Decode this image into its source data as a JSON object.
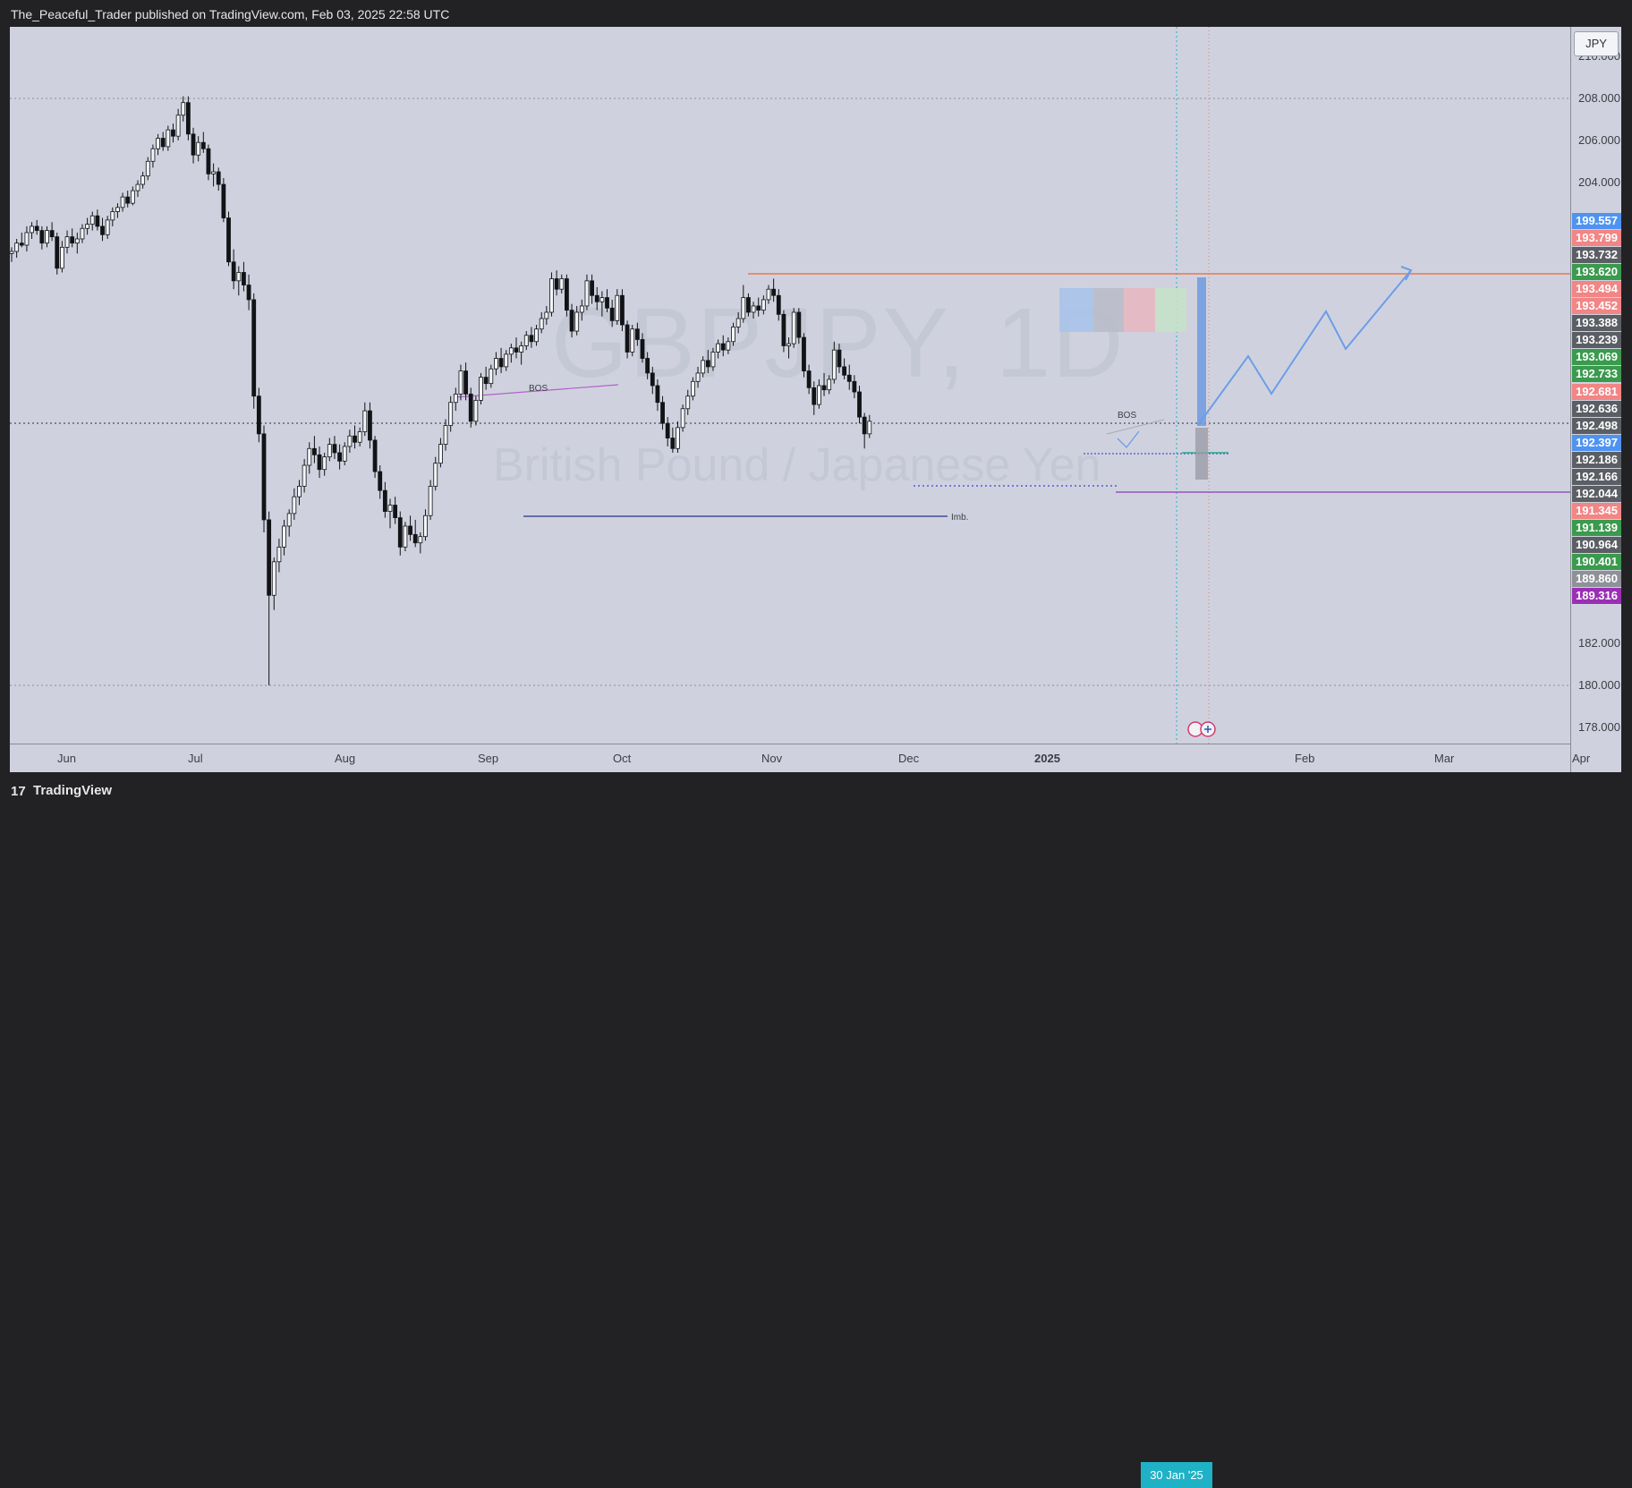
{
  "header": {
    "publisher_line": "The_Peaceful_Trader published on TradingView.com, Feb 03, 2025 22:58 UTC"
  },
  "footer": {
    "logo_icon": "tradingview-logo-icon",
    "logo_glyph": "17",
    "brand": "TradingView"
  },
  "chart": {
    "symbol_watermark": "GBPJPY, 1D",
    "description_watermark": "British Pound / Japanese Yen",
    "currency_button": "JPY",
    "selected_date": "30 Jan '25",
    "price_ticks": [
      "210.000",
      "208.000",
      "206.000",
      "204.000",
      "182.000",
      "180.000",
      "178.000"
    ],
    "time_ticks": [
      "Jun",
      "Jul",
      "Aug",
      "Sep",
      "Oct",
      "Nov",
      "Dec",
      "2025",
      "Feb",
      "Mar",
      "Apr"
    ],
    "annotations": {
      "bos_1": "BOS",
      "bos_2": "BOS",
      "imbalance": "Imb."
    },
    "price_badges": [
      {
        "value": "199.557",
        "color": "#4f93f2"
      },
      {
        "value": "193.799",
        "color": "#f28585"
      },
      {
        "value": "193.732",
        "color": "#5c5e65"
      },
      {
        "value": "193.620",
        "color": "#3a9a4d"
      },
      {
        "value": "193.494",
        "color": "#f28585"
      },
      {
        "value": "193.452",
        "color": "#f28585"
      },
      {
        "value": "193.388",
        "color": "#5c5e65"
      },
      {
        "value": "193.239",
        "color": "#5c5e65"
      },
      {
        "value": "193.069",
        "color": "#3a9a4d"
      },
      {
        "value": "192.733",
        "color": "#3a9a4d"
      },
      {
        "value": "192.681",
        "color": "#f28585"
      },
      {
        "value": "192.636",
        "color": "#5c5e65"
      },
      {
        "value": "192.498",
        "color": "#5c5e65"
      },
      {
        "value": "192.397",
        "color": "#4f93f2"
      },
      {
        "value": "192.186",
        "color": "#5c5e65"
      },
      {
        "value": "192.166",
        "color": "#5c5e65"
      },
      {
        "value": "192.044",
        "color": "#5c5e65"
      },
      {
        "value": "191.345",
        "color": "#f28585"
      },
      {
        "value": "191.139",
        "color": "#3a9a4d"
      },
      {
        "value": "190.964",
        "color": "#5c5e65"
      },
      {
        "value": "190.401",
        "color": "#3a9a4d"
      },
      {
        "value": "189.860",
        "color": "#8f9198"
      },
      {
        "value": "189.316",
        "color": "#9a2fb5"
      }
    ],
    "candles": [
      [
        200.6,
        200.9,
        200.2,
        200.7
      ],
      [
        200.7,
        201.3,
        200.4,
        201.1
      ],
      [
        201.1,
        201.6,
        200.9,
        201.0
      ],
      [
        201.0,
        201.9,
        200.7,
        201.6
      ],
      [
        201.6,
        202.1,
        201.3,
        201.9
      ],
      [
        201.9,
        202.2,
        201.5,
        201.7
      ],
      [
        201.7,
        201.9,
        200.8,
        201.1
      ],
      [
        201.1,
        201.9,
        200.9,
        201.7
      ],
      [
        201.7,
        202.1,
        201.2,
        201.4
      ],
      [
        201.4,
        201.6,
        199.6,
        199.9
      ],
      [
        199.9,
        201.2,
        199.7,
        200.9
      ],
      [
        200.9,
        201.7,
        200.6,
        201.4
      ],
      [
        201.4,
        201.8,
        200.9,
        201.1
      ],
      [
        201.1,
        201.6,
        200.6,
        201.3
      ],
      [
        201.3,
        202.0,
        201.1,
        201.8
      ],
      [
        201.8,
        202.3,
        201.5,
        202.0
      ],
      [
        202.0,
        202.6,
        201.7,
        202.4
      ],
      [
        202.4,
        202.7,
        201.7,
        201.9
      ],
      [
        201.9,
        202.3,
        201.2,
        201.5
      ],
      [
        201.5,
        202.4,
        201.3,
        202.2
      ],
      [
        202.2,
        202.8,
        201.9,
        202.6
      ],
      [
        202.6,
        203.0,
        202.3,
        202.8
      ],
      [
        202.8,
        203.5,
        202.6,
        203.3
      ],
      [
        203.3,
        203.6,
        202.8,
        203.0
      ],
      [
        203.0,
        203.8,
        202.9,
        203.6
      ],
      [
        203.6,
        204.1,
        203.3,
        203.9
      ],
      [
        203.9,
        204.5,
        203.7,
        204.3
      ],
      [
        204.3,
        205.2,
        204.1,
        205.0
      ],
      [
        205.0,
        205.8,
        204.7,
        205.6
      ],
      [
        205.6,
        206.3,
        205.3,
        206.1
      ],
      [
        206.1,
        206.4,
        205.5,
        205.7
      ],
      [
        205.7,
        206.7,
        205.5,
        206.5
      ],
      [
        206.5,
        206.8,
        205.9,
        206.2
      ],
      [
        206.2,
        207.5,
        206.0,
        207.2
      ],
      [
        207.2,
        208.1,
        206.9,
        207.8
      ],
      [
        207.8,
        208.1,
        206.0,
        206.3
      ],
      [
        206.3,
        206.6,
        204.9,
        205.3
      ],
      [
        205.3,
        206.2,
        205.0,
        205.9
      ],
      [
        205.9,
        206.4,
        205.4,
        205.6
      ],
      [
        205.6,
        205.8,
        204.1,
        204.4
      ],
      [
        204.4,
        204.9,
        203.8,
        204.5
      ],
      [
        204.5,
        204.7,
        203.6,
        203.9
      ],
      [
        203.9,
        204.2,
        202.1,
        202.3
      ],
      [
        202.3,
        202.6,
        200.0,
        200.2
      ],
      [
        200.2,
        200.8,
        198.9,
        199.3
      ],
      [
        199.3,
        200.0,
        198.6,
        199.7
      ],
      [
        199.7,
        200.2,
        198.8,
        199.1
      ],
      [
        199.1,
        199.6,
        197.9,
        198.4
      ],
      [
        198.4,
        198.7,
        193.2,
        193.8
      ],
      [
        193.8,
        194.2,
        191.6,
        192.0
      ],
      [
        192.0,
        192.4,
        187.3,
        187.9
      ],
      [
        187.9,
        188.3,
        180.0,
        184.3
      ],
      [
        184.3,
        186.1,
        183.6,
        185.9
      ],
      [
        185.9,
        187.0,
        185.4,
        186.6
      ],
      [
        186.6,
        187.9,
        186.2,
        187.6
      ],
      [
        187.6,
        188.4,
        187.1,
        188.2
      ],
      [
        188.2,
        189.4,
        187.9,
        189.0
      ],
      [
        189.0,
        189.8,
        188.6,
        189.5
      ],
      [
        189.5,
        190.8,
        189.2,
        190.5
      ],
      [
        190.5,
        191.6,
        190.1,
        191.3
      ],
      [
        191.3,
        191.9,
        190.6,
        191.0
      ],
      [
        191.0,
        191.4,
        189.9,
        190.3
      ],
      [
        190.3,
        191.1,
        190.0,
        190.9
      ],
      [
        190.9,
        191.8,
        190.7,
        191.5
      ],
      [
        191.5,
        191.9,
        190.8,
        191.1
      ],
      [
        191.1,
        191.5,
        190.3,
        190.7
      ],
      [
        190.7,
        191.6,
        190.5,
        191.4
      ],
      [
        191.4,
        192.2,
        191.1,
        191.9
      ],
      [
        191.9,
        192.4,
        191.3,
        191.6
      ],
      [
        191.6,
        192.3,
        191.4,
        192.1
      ],
      [
        192.1,
        193.5,
        191.9,
        193.1
      ],
      [
        193.1,
        193.5,
        191.3,
        191.7
      ],
      [
        191.7,
        191.9,
        189.9,
        190.2
      ],
      [
        190.2,
        190.5,
        188.9,
        189.3
      ],
      [
        189.3,
        189.7,
        188.0,
        188.3
      ],
      [
        188.3,
        188.9,
        187.5,
        188.6
      ],
      [
        188.6,
        189.0,
        187.7,
        188.0
      ],
      [
        188.0,
        188.3,
        186.2,
        186.6
      ],
      [
        186.6,
        187.8,
        186.4,
        187.6
      ],
      [
        187.6,
        188.1,
        186.9,
        187.2
      ],
      [
        187.2,
        187.9,
        186.6,
        186.8
      ],
      [
        186.8,
        187.3,
        186.3,
        187.1
      ],
      [
        187.1,
        188.4,
        186.9,
        188.1
      ],
      [
        188.1,
        189.8,
        187.9,
        189.5
      ],
      [
        189.5,
        190.9,
        189.3,
        190.6
      ],
      [
        190.6,
        191.8,
        190.4,
        191.5
      ],
      [
        191.5,
        192.7,
        191.2,
        192.4
      ],
      [
        192.4,
        193.8,
        192.1,
        193.5
      ],
      [
        193.5,
        194.2,
        193.1,
        193.9
      ],
      [
        193.9,
        195.3,
        193.6,
        195.0
      ],
      [
        195.0,
        195.4,
        193.6,
        193.9
      ],
      [
        193.9,
        194.2,
        192.3,
        192.6
      ],
      [
        192.6,
        193.8,
        192.4,
        193.6
      ],
      [
        193.6,
        194.9,
        193.4,
        194.7
      ],
      [
        194.7,
        195.2,
        194.1,
        194.4
      ],
      [
        194.4,
        195.3,
        194.2,
        195.1
      ],
      [
        195.1,
        195.9,
        194.8,
        195.6
      ],
      [
        195.6,
        196.1,
        194.9,
        195.2
      ],
      [
        195.2,
        196.0,
        195.0,
        195.8
      ],
      [
        195.8,
        196.3,
        195.4,
        196.1
      ],
      [
        196.1,
        196.6,
        195.6,
        195.9
      ],
      [
        195.9,
        196.4,
        195.3,
        196.2
      ],
      [
        196.2,
        196.9,
        196.0,
        196.7
      ],
      [
        196.7,
        197.1,
        196.1,
        196.4
      ],
      [
        196.4,
        197.2,
        196.2,
        197.0
      ],
      [
        197.0,
        197.8,
        196.8,
        197.5
      ],
      [
        197.5,
        198.1,
        197.2,
        197.8
      ],
      [
        197.8,
        199.7,
        197.6,
        199.4
      ],
      [
        199.4,
        199.8,
        198.6,
        198.9
      ],
      [
        198.9,
        199.6,
        198.7,
        199.4
      ],
      [
        199.4,
        199.6,
        197.6,
        197.9
      ],
      [
        197.9,
        198.2,
        196.6,
        196.9
      ],
      [
        196.9,
        198.1,
        196.7,
        197.8
      ],
      [
        197.8,
        198.4,
        197.4,
        198.1
      ],
      [
        198.1,
        199.6,
        197.9,
        199.3
      ],
      [
        199.3,
        199.6,
        198.2,
        198.6
      ],
      [
        198.6,
        199.0,
        197.9,
        198.3
      ],
      [
        198.3,
        198.8,
        197.6,
        198.5
      ],
      [
        198.5,
        198.9,
        197.8,
        198.0
      ],
      [
        198.0,
        198.4,
        197.1,
        197.4
      ],
      [
        197.4,
        198.9,
        197.2,
        198.6
      ],
      [
        198.6,
        198.9,
        196.9,
        197.2
      ],
      [
        197.2,
        197.4,
        195.6,
        195.9
      ],
      [
        195.9,
        197.2,
        195.7,
        197.0
      ],
      [
        197.0,
        197.3,
        196.2,
        196.5
      ],
      [
        196.5,
        196.8,
        195.4,
        195.6
      ],
      [
        195.6,
        195.9,
        194.6,
        194.9
      ],
      [
        194.9,
        195.2,
        193.9,
        194.3
      ],
      [
        194.3,
        194.6,
        193.1,
        193.5
      ],
      [
        193.5,
        193.8,
        192.2,
        192.5
      ],
      [
        192.5,
        192.8,
        191.4,
        191.8
      ],
      [
        191.8,
        192.3,
        191.1,
        191.3
      ],
      [
        191.3,
        192.6,
        191.1,
        192.3
      ],
      [
        192.3,
        193.4,
        192.1,
        193.2
      ],
      [
        193.2,
        194.1,
        192.9,
        193.8
      ],
      [
        193.8,
        194.7,
        193.6,
        194.5
      ],
      [
        194.5,
        195.2,
        194.2,
        194.9
      ],
      [
        194.9,
        195.7,
        194.7,
        195.5
      ],
      [
        195.5,
        196.0,
        194.9,
        195.2
      ],
      [
        195.2,
        196.1,
        195.0,
        195.9
      ],
      [
        195.9,
        196.5,
        195.6,
        196.3
      ],
      [
        196.3,
        196.7,
        195.7,
        196.0
      ],
      [
        196.0,
        196.6,
        195.8,
        196.4
      ],
      [
        196.4,
        197.3,
        196.2,
        197.1
      ],
      [
        197.1,
        197.8,
        196.8,
        197.5
      ],
      [
        197.5,
        199.1,
        197.3,
        198.5
      ],
      [
        198.5,
        198.7,
        197.6,
        197.8
      ],
      [
        197.8,
        198.3,
        197.5,
        198.1
      ],
      [
        198.1,
        198.5,
        197.6,
        197.9
      ],
      [
        197.9,
        198.6,
        197.7,
        198.4
      ],
      [
        198.4,
        199.1,
        198.2,
        198.9
      ],
      [
        198.9,
        199.4,
        198.3,
        198.6
      ],
      [
        198.6,
        198.9,
        197.4,
        197.7
      ],
      [
        197.7,
        197.9,
        195.9,
        196.2
      ],
      [
        196.2,
        196.6,
        195.6,
        196.3
      ],
      [
        196.3,
        198.0,
        196.1,
        197.8
      ],
      [
        197.8,
        198.0,
        196.3,
        196.6
      ],
      [
        196.6,
        196.8,
        194.7,
        195.0
      ],
      [
        195.0,
        195.3,
        193.9,
        194.2
      ],
      [
        194.2,
        194.5,
        192.9,
        193.4
      ],
      [
        193.4,
        194.6,
        193.2,
        194.3
      ],
      [
        194.3,
        194.9,
        193.8,
        194.1
      ],
      [
        194.1,
        194.8,
        193.9,
        194.6
      ],
      [
        194.6,
        196.4,
        194.4,
        196.0
      ],
      [
        196.0,
        196.3,
        194.9,
        195.2
      ],
      [
        195.2,
        195.6,
        194.6,
        194.8
      ],
      [
        194.8,
        195.3,
        194.1,
        194.5
      ],
      [
        194.5,
        194.8,
        193.7,
        194.0
      ],
      [
        194.0,
        194.3,
        192.5,
        192.8
      ],
      [
        192.8,
        193.0,
        191.3,
        192.0
      ],
      [
        192.0,
        192.9,
        191.8,
        192.6
      ]
    ]
  }
}
